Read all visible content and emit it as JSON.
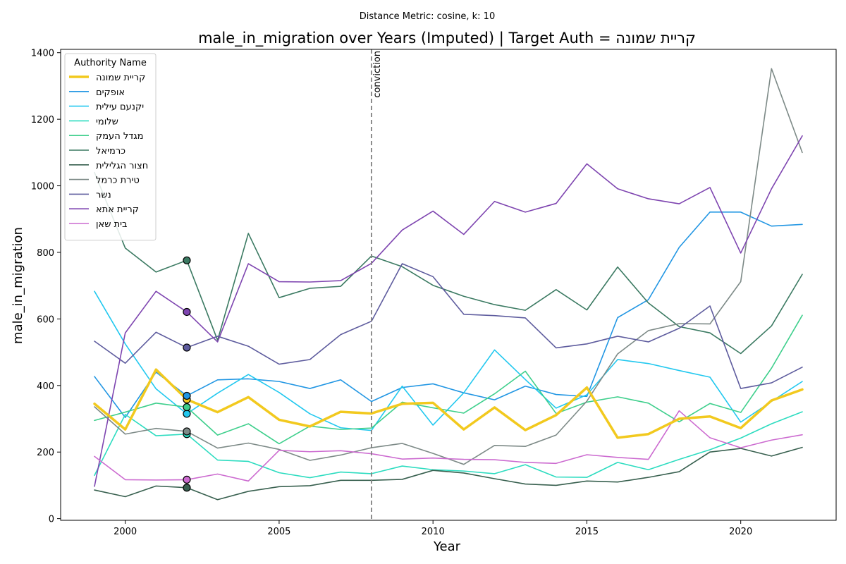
{
  "suptitle": "Distance Metric: cosine, k: 10",
  "chart_data": {
    "type": "line",
    "title": "male_in_migration over Years (Imputed) | Target Auth = קריית שמונה",
    "xlabel": "Year",
    "ylabel": "male_in_migration",
    "xlim": [
      1997.9,
      2023.1
    ],
    "ylim": [
      -5,
      1410
    ],
    "xticks": [
      2000,
      2005,
      2010,
      2015,
      2020
    ],
    "yticks": [
      0,
      200,
      400,
      600,
      800,
      1000,
      1200,
      1400
    ],
    "grid": false,
    "legend": {
      "title": "Authority Name",
      "placement": "top-left"
    },
    "annotation": {
      "x": 2008,
      "text": "conviction",
      "style": "dashed vertical line",
      "color": "#808080"
    },
    "x": [
      1999,
      2000,
      2001,
      2002,
      2003,
      2004,
      2005,
      2006,
      2007,
      2008,
      2009,
      2010,
      2011,
      2012,
      2013,
      2014,
      2015,
      2016,
      2017,
      2018,
      2019,
      2020,
      2021,
      2022
    ],
    "imputed_year": 2002,
    "series": [
      {
        "name": "קריית שמונה",
        "color": "#f2c91e",
        "width": 3.5,
        "target": true,
        "values": [
          345,
          268,
          448,
          358,
          320,
          365,
          297,
          277,
          321,
          316,
          345,
          348,
          268,
          334,
          266,
          311,
          394,
          243,
          254,
          300,
          307,
          272,
          355,
          388
        ]
      },
      {
        "name": "אופקים",
        "color": "#2196e3",
        "width": 1.6,
        "values": [
          427,
          304,
          440,
          369,
          417,
          420,
          412,
          391,
          417,
          352,
          394,
          405,
          378,
          357,
          398,
          373,
          367,
          604,
          658,
          815,
          921,
          921,
          879,
          884
        ]
      },
      {
        "name": "יקנעם עילית",
        "color": "#22c8ef",
        "width": 1.6,
        "values": [
          683,
          525,
          390,
          315,
          377,
          433,
          379,
          315,
          273,
          265,
          398,
          281,
          378,
          507,
          418,
          332,
          372,
          478,
          466,
          445,
          425,
          290,
          352,
          412
        ]
      },
      {
        "name": "שלומי",
        "color": "#2ddcc0",
        "width": 1.6,
        "values": [
          130,
          313,
          249,
          254,
          176,
          172,
          138,
          123,
          140,
          135,
          158,
          147,
          143,
          135,
          162,
          125,
          124,
          169,
          147,
          178,
          207,
          242,
          285,
          321
        ]
      },
      {
        "name": "מגדל העמק",
        "color": "#3ecf8c",
        "width": 1.6,
        "values": [
          295,
          320,
          347,
          335,
          251,
          285,
          225,
          278,
          268,
          272,
          350,
          333,
          317,
          375,
          443,
          316,
          350,
          366,
          347,
          291,
          346,
          319,
          452,
          611
        ]
      },
      {
        "name": "כרמיאל",
        "color": "#3b7a62",
        "width": 1.6,
        "values": [
          1040,
          813,
          741,
          776,
          536,
          857,
          664,
          692,
          698,
          789,
          757,
          701,
          668,
          643,
          626,
          688,
          627,
          756,
          648,
          577,
          558,
          496,
          579,
          734
        ]
      },
      {
        "name": "חצור הגלילית",
        "color": "#38604f",
        "width": 1.6,
        "values": [
          86,
          66,
          98,
          93,
          57,
          82,
          96,
          99,
          115,
          115,
          118,
          145,
          137,
          120,
          104,
          100,
          113,
          110,
          124,
          141,
          200,
          211,
          188,
          214
        ]
      },
      {
        "name": "טירת כרמל",
        "color": "#7d8a87",
        "width": 1.6,
        "values": [
          336,
          254,
          271,
          262,
          212,
          227,
          208,
          175,
          191,
          213,
          226,
          196,
          163,
          220,
          217,
          251,
          353,
          495,
          565,
          586,
          585,
          712,
          1352,
          1100
        ]
      },
      {
        "name": "נשר",
        "color": "#5e5c9e",
        "width": 1.6,
        "values": [
          533,
          467,
          560,
          514,
          548,
          518,
          464,
          478,
          553,
          593,
          766,
          727,
          614,
          610,
          603,
          513,
          525,
          548,
          531,
          572,
          639,
          391,
          408,
          455
        ]
      },
      {
        "name": "קריית אתא",
        "color": "#7e45b0",
        "width": 1.6,
        "values": [
          97,
          558,
          683,
          621,
          531,
          766,
          712,
          711,
          715,
          767,
          867,
          924,
          854,
          953,
          921,
          947,
          1066,
          991,
          961,
          946,
          995,
          798,
          991,
          1150
        ]
      },
      {
        "name": "בית שאן",
        "color": "#cc6bd0",
        "width": 1.6,
        "values": [
          187,
          117,
          116,
          117,
          134,
          113,
          205,
          201,
          204,
          195,
          179,
          182,
          178,
          177,
          169,
          166,
          192,
          184,
          178,
          324,
          243,
          213,
          236,
          252
        ]
      }
    ]
  }
}
